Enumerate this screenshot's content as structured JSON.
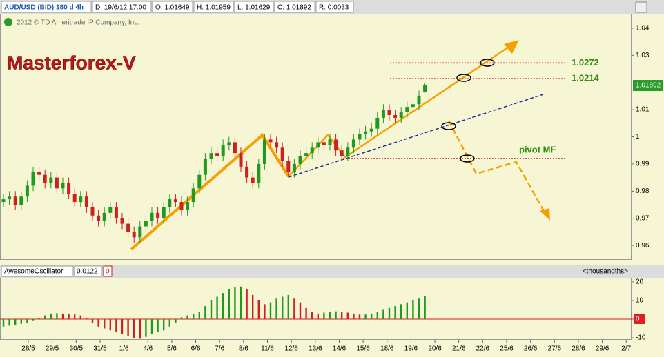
{
  "header": {
    "symbol": "AUD/USD (BID) 180 d 4h",
    "date": "D: 19/6/12 17:00",
    "open": "O: 1.01649",
    "high": "H: 1.01959",
    "low": "L: 1.01629",
    "close": "C: 1.01892",
    "range": "R: 0.0033",
    "copyright": "2012 © TD Ameritrade IP Company, Inc."
  },
  "time_axis": {
    "labels": [
      "28/5",
      "29/5",
      "30/5",
      "31/5",
      "1/6",
      "4/6",
      "5/6",
      "6/6",
      "7/6",
      "8/6",
      "11/6",
      "12/6",
      "13/6",
      "14/6",
      "15/6",
      "18/6",
      "19/6",
      "20/6",
      "21/6",
      "22/6",
      "25/6",
      "26/6",
      "27/6",
      "28/6",
      "29/6",
      "2/7"
    ]
  },
  "chart_data": [
    {
      "type": "candlestick",
      "title": "Masterforex-V",
      "up_color": "#1f9a1f",
      "down_color": "#d01f1f",
      "ylim": [
        0.9547,
        1.0453
      ],
      "yticks": [
        0.96,
        0.97,
        0.98,
        0.99,
        1,
        1.01,
        1.03,
        1.04
      ],
      "last_price_label": "1.01892",
      "levels": [
        1.0272,
        1.0214
      ],
      "annotation": "pivot MF",
      "candles": [
        [
          0.976,
          0.979,
          0.974,
          0.977
        ],
        [
          0.977,
          0.98,
          0.975,
          0.978
        ],
        [
          0.978,
          0.98,
          0.973,
          0.975
        ],
        [
          0.975,
          0.98,
          0.973,
          0.978
        ],
        [
          0.978,
          0.984,
          0.976,
          0.982
        ],
        [
          0.982,
          0.989,
          0.98,
          0.987
        ],
        [
          0.987,
          0.989,
          0.984,
          0.986
        ],
        [
          0.986,
          0.988,
          0.981,
          0.983
        ],
        [
          0.983,
          0.987,
          0.981,
          0.985
        ],
        [
          0.985,
          0.987,
          0.979,
          0.981
        ],
        [
          0.981,
          0.985,
          0.979,
          0.983
        ],
        [
          0.983,
          0.985,
          0.977,
          0.979
        ],
        [
          0.979,
          0.981,
          0.974,
          0.976
        ],
        [
          0.976,
          0.98,
          0.974,
          0.978
        ],
        [
          0.978,
          0.98,
          0.972,
          0.974
        ],
        [
          0.974,
          0.976,
          0.969,
          0.971
        ],
        [
          0.971,
          0.973,
          0.967,
          0.969
        ],
        [
          0.969,
          0.974,
          0.967,
          0.972
        ],
        [
          0.972,
          0.976,
          0.97,
          0.974
        ],
        [
          0.974,
          0.976,
          0.968,
          0.97
        ],
        [
          0.97,
          0.972,
          0.966,
          0.968
        ],
        [
          0.968,
          0.97,
          0.963,
          0.965
        ],
        [
          0.965,
          0.967,
          0.961,
          0.963
        ],
        [
          0.963,
          0.969,
          0.961,
          0.967
        ],
        [
          0.967,
          0.971,
          0.965,
          0.969
        ],
        [
          0.969,
          0.974,
          0.967,
          0.972
        ],
        [
          0.972,
          0.974,
          0.968,
          0.97
        ],
        [
          0.97,
          0.976,
          0.968,
          0.974
        ],
        [
          0.974,
          0.979,
          0.972,
          0.977
        ],
        [
          0.977,
          0.979,
          0.974,
          0.976
        ],
        [
          0.976,
          0.978,
          0.971,
          0.973
        ],
        [
          0.973,
          0.978,
          0.971,
          0.976
        ],
        [
          0.976,
          0.983,
          0.974,
          0.981
        ],
        [
          0.981,
          0.988,
          0.979,
          0.986
        ],
        [
          0.986,
          0.994,
          0.984,
          0.992
        ],
        [
          0.992,
          0.996,
          0.99,
          0.994
        ],
        [
          0.994,
          0.996,
          0.991,
          0.993
        ],
        [
          0.993,
          0.999,
          0.991,
          0.997
        ],
        [
          0.997,
          1.0,
          0.995,
          0.998
        ],
        [
          0.998,
          1.0,
          0.992,
          0.994
        ],
        [
          0.994,
          0.996,
          0.987,
          0.989
        ],
        [
          0.989,
          0.991,
          0.983,
          0.985
        ],
        [
          0.985,
          0.987,
          0.981,
          0.983
        ],
        [
          0.983,
          0.992,
          0.981,
          0.99
        ],
        [
          0.99,
          1.001,
          0.988,
          0.999
        ],
        [
          0.999,
          1.001,
          0.996,
          0.998
        ],
        [
          0.998,
          1.0,
          0.994,
          0.996
        ],
        [
          0.996,
          0.998,
          0.989,
          0.991
        ],
        [
          0.991,
          0.993,
          0.985,
          0.987
        ],
        [
          0.987,
          0.992,
          0.985,
          0.99
        ],
        [
          0.99,
          0.995,
          0.988,
          0.993
        ],
        [
          0.993,
          0.996,
          0.991,
          0.994
        ],
        [
          0.994,
          0.998,
          0.992,
          0.996
        ],
        [
          0.996,
          1.0,
          0.994,
          0.998
        ],
        [
          0.998,
          1.0,
          0.995,
          0.997
        ],
        [
          0.997,
          1.001,
          0.995,
          0.999
        ],
        [
          0.999,
          1.001,
          0.993,
          0.995
        ],
        [
          0.995,
          0.997,
          0.991,
          0.993
        ],
        [
          0.993,
          0.998,
          0.991,
          0.996
        ],
        [
          0.996,
          1.001,
          0.994,
          0.999
        ],
        [
          0.999,
          1.003,
          0.997,
          1.001
        ],
        [
          1.001,
          1.004,
          0.999,
          1.002
        ],
        [
          1.002,
          1.005,
          1.0,
          1.003
        ],
        [
          1.003,
          1.009,
          1.001,
          1.007
        ],
        [
          1.007,
          1.012,
          1.005,
          1.01
        ],
        [
          1.01,
          1.012,
          1.006,
          1.008
        ],
        [
          1.008,
          1.01,
          1.005,
          1.007
        ],
        [
          1.007,
          1.011,
          1.005,
          1.009
        ],
        [
          1.009,
          1.013,
          1.007,
          1.011
        ],
        [
          1.011,
          1.014,
          1.009,
          1.012
        ],
        [
          1.012,
          1.017,
          1.01,
          1.015
        ],
        [
          1.0165,
          1.0196,
          1.0163,
          1.0189
        ]
      ]
    },
    {
      "type": "bar",
      "title": "AwesomeOscillator",
      "value_label": "0.0122",
      "param": "0",
      "unit": "<thousandths>",
      "up_color": "#1f9a1f",
      "down_color": "#d01f1f",
      "ylim": [
        -11.1,
        22.2
      ],
      "yticks": [
        20,
        10,
        0,
        -10
      ],
      "values": [
        -4,
        -3.5,
        -3,
        -2.5,
        -2,
        -1,
        0.5,
        2,
        3,
        3.2,
        3,
        2.8,
        2.5,
        2,
        0.5,
        -2,
        -4,
        -5,
        -6,
        -7,
        -8,
        -9,
        -10,
        -10.5,
        -9.5,
        -8,
        -7,
        -6,
        -4,
        -2,
        1,
        2,
        3,
        4,
        7,
        10,
        12,
        14,
        16,
        17,
        17.5,
        16,
        13,
        10,
        8,
        9,
        11,
        12,
        13,
        11,
        9,
        6,
        4,
        3,
        3.5,
        4,
        4.2,
        4,
        3.5,
        3,
        2.5,
        2.5,
        3,
        4,
        5,
        6,
        7,
        8,
        9,
        10,
        11,
        12.2
      ]
    }
  ]
}
